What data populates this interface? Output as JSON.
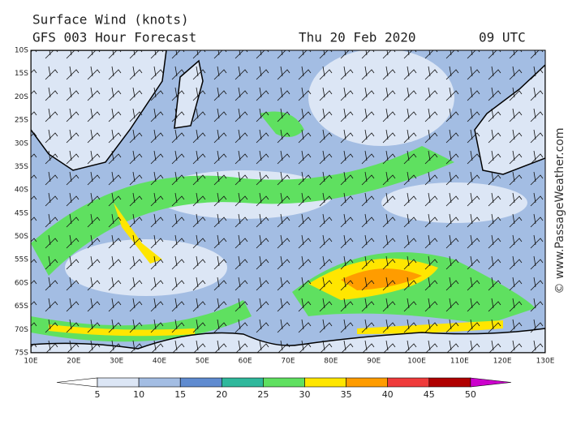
{
  "header": {
    "title": "Surface Wind (knots)",
    "subtitle": "GFS 003 Hour Forecast",
    "date": "Thu 20 Feb 2020",
    "time": "09 UTC"
  },
  "map": {
    "lat_labels": [
      "10S",
      "15S",
      "20S",
      "25S",
      "30S",
      "35S",
      "40S",
      "45S",
      "50S",
      "55S",
      "60S",
      "65S",
      "70S",
      "75S"
    ],
    "lon_labels": [
      "10E",
      "20E",
      "30E",
      "40E",
      "50E",
      "60E",
      "70E",
      "80E",
      "90E",
      "100E",
      "110E",
      "120E",
      "130E"
    ]
  },
  "legend": {
    "ticks": [
      5,
      10,
      15,
      20,
      25,
      30,
      35,
      40,
      45,
      50
    ],
    "colors": [
      "#ffffff",
      "#dce6f5",
      "#a3bde3",
      "#5f8bd0",
      "#2fb89c",
      "#5fe060",
      "#ffe600",
      "#ff9c00",
      "#ef3b3b",
      "#b00000",
      "#cc00cc"
    ]
  },
  "credit": "© www.PassageWeather.com"
}
